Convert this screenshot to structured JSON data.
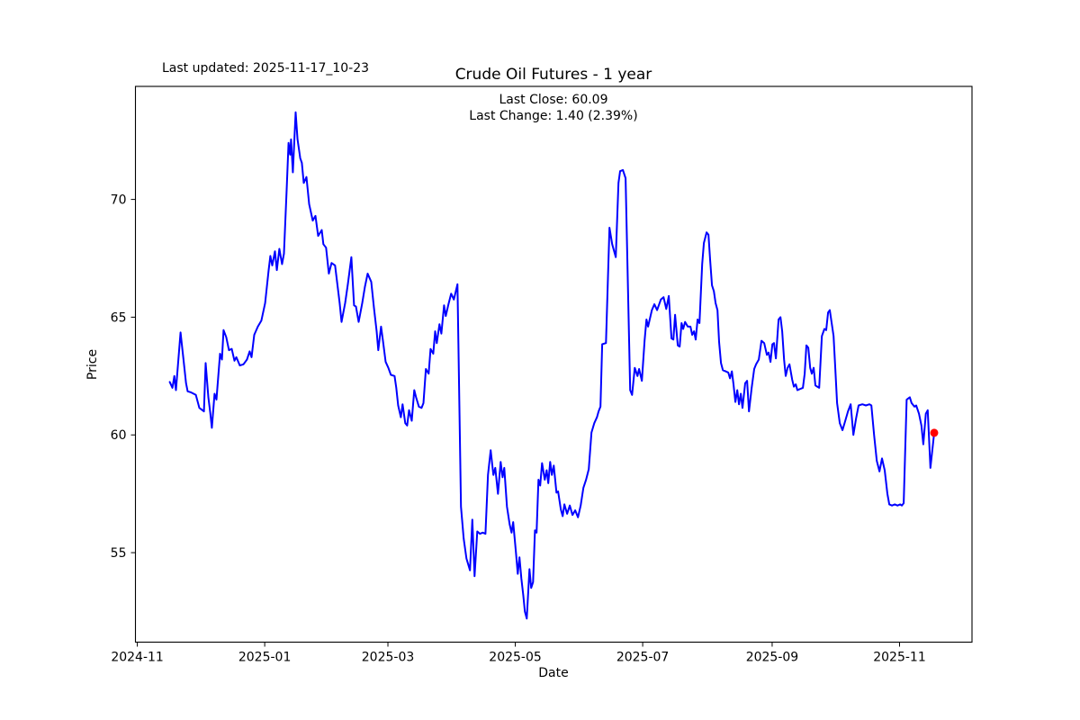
{
  "window": {
    "background": "#ffffff"
  },
  "header": {
    "last_updated": "Last updated: 2025-11-17_10-23",
    "title": "Crude Oil Futures - 1 year"
  },
  "annotation": {
    "line1": "Last Close: 60.09",
    "line2": "Last Change: 1.40 (2.39%)"
  },
  "chart_data": {
    "type": "line",
    "title": "Crude Oil Futures - 1 year",
    "xlabel": "Date",
    "ylabel": "Price",
    "legend": null,
    "grid": false,
    "line_color": "#0000ff",
    "line_width": 2,
    "marker_color": "#ff0000",
    "marker_radius": 4.5,
    "frame_color": "#000000",
    "last_close": 60.09,
    "last_change_abs": 1.4,
    "last_change_pct": 2.39,
    "x_unit": "days since 2024-11-01",
    "xlim_days": [
      -0.9,
      399.7
    ],
    "ylim": [
      51.2,
      74.8
    ],
    "y_ticks": [
      55,
      60,
      65,
      70
    ],
    "x_ticks": [
      {
        "t": 0,
        "label": "2024-11"
      },
      {
        "t": 61,
        "label": "2025-01"
      },
      {
        "t": 120,
        "label": "2025-03"
      },
      {
        "t": 181,
        "label": "2025-05"
      },
      {
        "t": 242,
        "label": "2025-07"
      },
      {
        "t": 304,
        "label": "2025-09"
      },
      {
        "t": 365,
        "label": "2025-11"
      }
    ],
    "last_point": {
      "t": 381.6,
      "price": 60.09
    },
    "points": [
      [
        15.5,
        62.25
      ],
      [
        16.8,
        62.0
      ],
      [
        17.7,
        62.5
      ],
      [
        18.5,
        61.9
      ],
      [
        20.7,
        64.35
      ],
      [
        22.0,
        63.3
      ],
      [
        23.3,
        62.2
      ],
      [
        24.1,
        61.85
      ],
      [
        25.8,
        61.8
      ],
      [
        28.0,
        61.7
      ],
      [
        29.7,
        61.15
      ],
      [
        31.9,
        61.0
      ],
      [
        32.7,
        63.05
      ],
      [
        34.0,
        61.6
      ],
      [
        34.9,
        60.95
      ],
      [
        35.7,
        60.3
      ],
      [
        37.0,
        61.75
      ],
      [
        37.9,
        61.5
      ],
      [
        39.6,
        63.45
      ],
      [
        40.5,
        63.2
      ],
      [
        41.3,
        64.45
      ],
      [
        42.6,
        64.15
      ],
      [
        43.9,
        63.6
      ],
      [
        45.2,
        63.65
      ],
      [
        46.5,
        63.15
      ],
      [
        47.4,
        63.3
      ],
      [
        49.1,
        62.95
      ],
      [
        50.8,
        63.0
      ],
      [
        52.5,
        63.2
      ],
      [
        53.8,
        63.55
      ],
      [
        54.7,
        63.3
      ],
      [
        56.0,
        64.25
      ],
      [
        57.7,
        64.6
      ],
      [
        59.4,
        64.85
      ],
      [
        61.2,
        65.6
      ],
      [
        62.9,
        67.0
      ],
      [
        63.7,
        67.6
      ],
      [
        64.6,
        67.2
      ],
      [
        65.9,
        67.8
      ],
      [
        66.8,
        67.0
      ],
      [
        68.0,
        67.9
      ],
      [
        69.3,
        67.25
      ],
      [
        70.2,
        67.7
      ],
      [
        71.5,
        70.4
      ],
      [
        72.4,
        72.4
      ],
      [
        73.2,
        71.9
      ],
      [
        73.6,
        72.55
      ],
      [
        74.5,
        71.15
      ],
      [
        75.8,
        73.7
      ],
      [
        76.7,
        72.55
      ],
      [
        78.0,
        71.75
      ],
      [
        78.8,
        71.55
      ],
      [
        79.7,
        70.7
      ],
      [
        81.0,
        70.95
      ],
      [
        82.3,
        69.8
      ],
      [
        84.0,
        69.1
      ],
      [
        85.3,
        69.3
      ],
      [
        86.6,
        68.45
      ],
      [
        88.3,
        68.7
      ],
      [
        89.1,
        68.1
      ],
      [
        90.4,
        67.95
      ],
      [
        91.7,
        66.85
      ],
      [
        93.0,
        67.3
      ],
      [
        94.7,
        67.2
      ],
      [
        96.9,
        65.6
      ],
      [
        97.8,
        64.8
      ],
      [
        99.5,
        65.6
      ],
      [
        100.8,
        66.4
      ],
      [
        102.5,
        67.55
      ],
      [
        103.8,
        65.5
      ],
      [
        104.7,
        65.45
      ],
      [
        106.0,
        64.8
      ],
      [
        107.7,
        65.6
      ],
      [
        109.0,
        66.3
      ],
      [
        110.3,
        66.85
      ],
      [
        112.0,
        66.5
      ],
      [
        113.3,
        65.4
      ],
      [
        114.6,
        64.4
      ],
      [
        115.4,
        63.6
      ],
      [
        116.7,
        64.6
      ],
      [
        117.6,
        64.0
      ],
      [
        118.9,
        63.1
      ],
      [
        120.2,
        62.85
      ],
      [
        121.4,
        62.55
      ],
      [
        123.2,
        62.5
      ],
      [
        124.0,
        62.0
      ],
      [
        124.9,
        61.25
      ],
      [
        126.2,
        60.75
      ],
      [
        127.0,
        61.3
      ],
      [
        128.3,
        60.5
      ],
      [
        129.2,
        60.4
      ],
      [
        130.1,
        61.05
      ],
      [
        131.4,
        60.6
      ],
      [
        132.6,
        61.9
      ],
      [
        133.5,
        61.6
      ],
      [
        134.8,
        61.2
      ],
      [
        136.1,
        61.15
      ],
      [
        137.0,
        61.35
      ],
      [
        138.2,
        62.8
      ],
      [
        139.5,
        62.6
      ],
      [
        140.4,
        63.65
      ],
      [
        141.7,
        63.45
      ],
      [
        142.6,
        64.4
      ],
      [
        143.4,
        63.9
      ],
      [
        144.7,
        64.7
      ],
      [
        145.6,
        64.3
      ],
      [
        146.9,
        65.5
      ],
      [
        147.7,
        65.05
      ],
      [
        149.0,
        65.55
      ],
      [
        150.3,
        66.0
      ],
      [
        151.6,
        65.75
      ],
      [
        153.3,
        66.4
      ],
      [
        155.0,
        56.95
      ],
      [
        156.3,
        55.6
      ],
      [
        157.6,
        54.75
      ],
      [
        159.3,
        54.25
      ],
      [
        160.4,
        56.4
      ],
      [
        161.5,
        54.0
      ],
      [
        162.8,
        55.9
      ],
      [
        164.1,
        55.8
      ],
      [
        165.4,
        55.85
      ],
      [
        166.7,
        55.8
      ],
      [
        167.9,
        58.3
      ],
      [
        169.2,
        59.35
      ],
      [
        170.5,
        58.3
      ],
      [
        171.4,
        58.6
      ],
      [
        172.7,
        57.5
      ],
      [
        174.0,
        58.85
      ],
      [
        174.9,
        58.2
      ],
      [
        175.7,
        58.6
      ],
      [
        177.0,
        56.95
      ],
      [
        178.3,
        56.2
      ],
      [
        179.2,
        55.85
      ],
      [
        180.0,
        56.3
      ],
      [
        181.3,
        55.0
      ],
      [
        182.2,
        54.1
      ],
      [
        183.0,
        54.8
      ],
      [
        183.9,
        53.9
      ],
      [
        184.8,
        53.2
      ],
      [
        185.6,
        52.5
      ],
      [
        186.5,
        52.2
      ],
      [
        187.8,
        54.3
      ],
      [
        188.6,
        53.5
      ],
      [
        189.5,
        53.75
      ],
      [
        190.4,
        55.95
      ],
      [
        191.2,
        55.85
      ],
      [
        192.1,
        58.1
      ],
      [
        192.9,
        57.85
      ],
      [
        193.8,
        58.8
      ],
      [
        195.1,
        58.1
      ],
      [
        196.0,
        58.5
      ],
      [
        196.8,
        57.95
      ],
      [
        197.7,
        58.85
      ],
      [
        198.5,
        58.3
      ],
      [
        199.4,
        58.7
      ],
      [
        200.7,
        57.55
      ],
      [
        201.5,
        57.6
      ],
      [
        202.8,
        56.85
      ],
      [
        203.7,
        56.55
      ],
      [
        204.5,
        57.05
      ],
      [
        205.8,
        56.65
      ],
      [
        207.1,
        57.0
      ],
      [
        208.4,
        56.6
      ],
      [
        209.7,
        56.8
      ],
      [
        211.0,
        56.5
      ],
      [
        212.3,
        57.0
      ],
      [
        213.6,
        57.75
      ],
      [
        214.9,
        58.1
      ],
      [
        216.2,
        58.55
      ],
      [
        217.5,
        60.1
      ],
      [
        218.8,
        60.5
      ],
      [
        220.1,
        60.75
      ],
      [
        220.9,
        61.0
      ],
      [
        221.8,
        61.2
      ],
      [
        222.6,
        63.85
      ],
      [
        224.4,
        63.9
      ],
      [
        226.1,
        68.8
      ],
      [
        227.4,
        68.1
      ],
      [
        229.1,
        67.55
      ],
      [
        230.4,
        70.7
      ],
      [
        231.2,
        71.2
      ],
      [
        232.5,
        71.25
      ],
      [
        233.8,
        70.9
      ],
      [
        236.0,
        61.9
      ],
      [
        236.9,
        61.7
      ],
      [
        238.2,
        62.85
      ],
      [
        239.5,
        62.5
      ],
      [
        240.3,
        62.8
      ],
      [
        241.6,
        62.3
      ],
      [
        242.9,
        64.0
      ],
      [
        243.8,
        64.9
      ],
      [
        244.6,
        64.6
      ],
      [
        246.4,
        65.3
      ],
      [
        247.6,
        65.55
      ],
      [
        248.9,
        65.3
      ],
      [
        250.7,
        65.75
      ],
      [
        252.0,
        65.85
      ],
      [
        253.3,
        65.35
      ],
      [
        254.5,
        65.9
      ],
      [
        255.8,
        64.1
      ],
      [
        256.7,
        64.05
      ],
      [
        257.5,
        65.1
      ],
      [
        258.8,
        63.8
      ],
      [
        259.7,
        63.75
      ],
      [
        260.6,
        64.75
      ],
      [
        261.4,
        64.5
      ],
      [
        262.3,
        64.8
      ],
      [
        263.6,
        64.6
      ],
      [
        264.9,
        64.6
      ],
      [
        265.7,
        64.25
      ],
      [
        266.6,
        64.4
      ],
      [
        267.4,
        64.05
      ],
      [
        268.3,
        64.9
      ],
      [
        269.2,
        64.75
      ],
      [
        270.5,
        67.25
      ],
      [
        271.3,
        68.15
      ],
      [
        272.6,
        68.6
      ],
      [
        273.5,
        68.5
      ],
      [
        274.3,
        67.45
      ],
      [
        275.2,
        66.35
      ],
      [
        276.1,
        66.1
      ],
      [
        276.9,
        65.6
      ],
      [
        277.8,
        65.3
      ],
      [
        278.6,
        63.95
      ],
      [
        279.5,
        63.05
      ],
      [
        280.4,
        62.75
      ],
      [
        281.7,
        62.7
      ],
      [
        283.0,
        62.65
      ],
      [
        283.8,
        62.4
      ],
      [
        284.7,
        62.7
      ],
      [
        285.5,
        62.15
      ],
      [
        286.4,
        61.4
      ],
      [
        287.3,
        61.9
      ],
      [
        288.1,
        61.3
      ],
      [
        289.0,
        61.75
      ],
      [
        289.8,
        61.15
      ],
      [
        291.1,
        62.2
      ],
      [
        292.0,
        62.3
      ],
      [
        292.9,
        61.0
      ],
      [
        294.2,
        62.0
      ],
      [
        295.4,
        62.8
      ],
      [
        296.3,
        63.0
      ],
      [
        297.6,
        63.2
      ],
      [
        298.9,
        64.0
      ],
      [
        300.2,
        63.9
      ],
      [
        301.5,
        63.4
      ],
      [
        302.3,
        63.5
      ],
      [
        303.2,
        63.1
      ],
      [
        304.1,
        63.85
      ],
      [
        304.9,
        63.9
      ],
      [
        305.8,
        63.25
      ],
      [
        307.1,
        64.9
      ],
      [
        308.0,
        65.0
      ],
      [
        308.8,
        64.4
      ],
      [
        309.7,
        63.2
      ],
      [
        310.5,
        62.5
      ],
      [
        311.4,
        62.85
      ],
      [
        312.3,
        63.0
      ],
      [
        313.6,
        62.35
      ],
      [
        314.4,
        62.05
      ],
      [
        315.3,
        62.15
      ],
      [
        316.1,
        61.9
      ],
      [
        317.4,
        61.95
      ],
      [
        318.7,
        62.0
      ],
      [
        319.6,
        62.6
      ],
      [
        320.4,
        63.8
      ],
      [
        321.3,
        63.7
      ],
      [
        322.2,
        62.85
      ],
      [
        323.0,
        62.6
      ],
      [
        323.9,
        62.85
      ],
      [
        324.7,
        62.1
      ],
      [
        325.6,
        62.05
      ],
      [
        326.5,
        62.0
      ],
      [
        327.8,
        64.2
      ],
      [
        329.0,
        64.5
      ],
      [
        329.9,
        64.45
      ],
      [
        330.8,
        65.2
      ],
      [
        331.6,
        65.3
      ],
      [
        332.5,
        64.75
      ],
      [
        333.4,
        64.2
      ],
      [
        334.2,
        62.9
      ],
      [
        335.1,
        61.35
      ],
      [
        336.4,
        60.5
      ],
      [
        337.7,
        60.2
      ],
      [
        339.0,
        60.6
      ],
      [
        340.3,
        61.0
      ],
      [
        341.6,
        61.3
      ],
      [
        342.9,
        60.0
      ],
      [
        344.2,
        60.7
      ],
      [
        345.4,
        61.25
      ],
      [
        347.2,
        61.3
      ],
      [
        348.9,
        61.25
      ],
      [
        350.6,
        61.3
      ],
      [
        351.5,
        61.25
      ],
      [
        352.8,
        60.0
      ],
      [
        354.1,
        58.9
      ],
      [
        355.4,
        58.45
      ],
      [
        356.6,
        59.0
      ],
      [
        357.9,
        58.5
      ],
      [
        359.2,
        57.5
      ],
      [
        360.1,
        57.05
      ],
      [
        361.4,
        57.0
      ],
      [
        362.7,
        57.05
      ],
      [
        364.0,
        57.0
      ],
      [
        365.3,
        57.05
      ],
      [
        366.1,
        57.0
      ],
      [
        367.0,
        57.1
      ],
      [
        368.4,
        61.5
      ],
      [
        369.9,
        61.6
      ],
      [
        370.8,
        61.35
      ],
      [
        372.1,
        61.2
      ],
      [
        373.0,
        61.25
      ],
      [
        374.3,
        60.9
      ],
      [
        375.5,
        60.4
      ],
      [
        376.4,
        59.6
      ],
      [
        377.6,
        60.9
      ],
      [
        378.5,
        61.05
      ],
      [
        379.8,
        58.6
      ],
      [
        381.6,
        60.09
      ]
    ]
  }
}
